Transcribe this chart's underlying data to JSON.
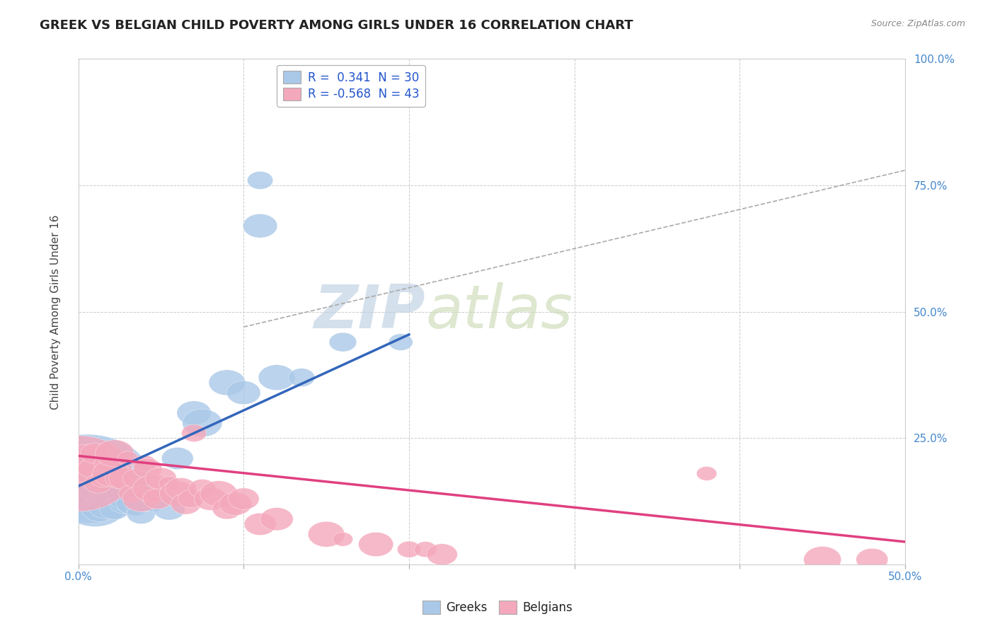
{
  "title": "GREEK VS BELGIAN CHILD POVERTY AMONG GIRLS UNDER 16 CORRELATION CHART",
  "source": "Source: ZipAtlas.com",
  "ylabel": "Child Poverty Among Girls Under 16",
  "xlim": [
    0.0,
    0.5
  ],
  "ylim": [
    0.0,
    1.0
  ],
  "xticks": [
    0.0,
    0.1,
    0.2,
    0.3,
    0.4,
    0.5
  ],
  "yticks": [
    0.0,
    0.25,
    0.5,
    0.75,
    1.0
  ],
  "xtick_labels": [
    "0.0%",
    "",
    "",
    "",
    "",
    "50.0%"
  ],
  "ytick_labels": [
    "",
    "25.0%",
    "50.0%",
    "75.0%",
    "100.0%"
  ],
  "greek_R": 0.341,
  "greek_N": 30,
  "belgian_R": -0.568,
  "belgian_N": 43,
  "greek_color": "#aac8e8",
  "belgian_color": "#f4a8bc",
  "greek_line_color": "#3366bb",
  "belgian_line_color": "#e04080",
  "greek_scatter": [
    [
      0.005,
      0.17
    ],
    [
      0.008,
      0.15
    ],
    [
      0.01,
      0.12
    ],
    [
      0.012,
      0.14
    ],
    [
      0.013,
      0.11
    ],
    [
      0.015,
      0.13
    ],
    [
      0.018,
      0.12
    ],
    [
      0.02,
      0.13
    ],
    [
      0.022,
      0.11
    ],
    [
      0.025,
      0.14
    ],
    [
      0.027,
      0.12
    ],
    [
      0.03,
      0.13
    ],
    [
      0.032,
      0.12
    ],
    [
      0.035,
      0.11
    ],
    [
      0.038,
      0.1
    ],
    [
      0.04,
      0.13
    ],
    [
      0.045,
      0.12
    ],
    [
      0.05,
      0.13
    ],
    [
      0.055,
      0.11
    ],
    [
      0.06,
      0.21
    ],
    [
      0.07,
      0.3
    ],
    [
      0.075,
      0.28
    ],
    [
      0.09,
      0.36
    ],
    [
      0.1,
      0.34
    ],
    [
      0.12,
      0.37
    ],
    [
      0.135,
      0.37
    ],
    [
      0.16,
      0.44
    ],
    [
      0.195,
      0.44
    ],
    [
      0.11,
      0.76
    ],
    [
      0.11,
      0.67
    ]
  ],
  "belgian_scatter": [
    [
      0.0,
      0.18
    ],
    [
      0.005,
      0.2
    ],
    [
      0.008,
      0.19
    ],
    [
      0.01,
      0.22
    ],
    [
      0.012,
      0.16
    ],
    [
      0.015,
      0.17
    ],
    [
      0.018,
      0.2
    ],
    [
      0.02,
      0.18
    ],
    [
      0.022,
      0.22
    ],
    [
      0.025,
      0.17
    ],
    [
      0.028,
      0.17
    ],
    [
      0.03,
      0.21
    ],
    [
      0.032,
      0.14
    ],
    [
      0.035,
      0.17
    ],
    [
      0.038,
      0.13
    ],
    [
      0.04,
      0.2
    ],
    [
      0.042,
      0.19
    ],
    [
      0.045,
      0.15
    ],
    [
      0.048,
      0.13
    ],
    [
      0.05,
      0.17
    ],
    [
      0.055,
      0.16
    ],
    [
      0.06,
      0.14
    ],
    [
      0.062,
      0.15
    ],
    [
      0.065,
      0.12
    ],
    [
      0.068,
      0.13
    ],
    [
      0.07,
      0.26
    ],
    [
      0.075,
      0.15
    ],
    [
      0.08,
      0.13
    ],
    [
      0.085,
      0.14
    ],
    [
      0.09,
      0.11
    ],
    [
      0.095,
      0.12
    ],
    [
      0.1,
      0.13
    ],
    [
      0.11,
      0.08
    ],
    [
      0.12,
      0.09
    ],
    [
      0.15,
      0.06
    ],
    [
      0.16,
      0.05
    ],
    [
      0.18,
      0.04
    ],
    [
      0.2,
      0.03
    ],
    [
      0.21,
      0.03
    ],
    [
      0.22,
      0.02
    ],
    [
      0.38,
      0.18
    ],
    [
      0.45,
      0.01
    ],
    [
      0.48,
      0.01
    ]
  ],
  "greek_line_x": [
    0.0,
    0.2
  ],
  "greek_line_y": [
    0.155,
    0.455
  ],
  "belgian_line_x": [
    0.0,
    0.5
  ],
  "belgian_line_y": [
    0.215,
    0.045
  ],
  "dashed_line_x": [
    0.1,
    0.5
  ],
  "dashed_line_y": [
    0.47,
    0.78
  ],
  "watermark_zip": "ZIP",
  "watermark_atlas": "atlas",
  "background_color": "#ffffff",
  "grid_color": "#cccccc",
  "title_fontsize": 13,
  "axis_label_fontsize": 11,
  "tick_fontsize": 11,
  "legend_fontsize": 12
}
